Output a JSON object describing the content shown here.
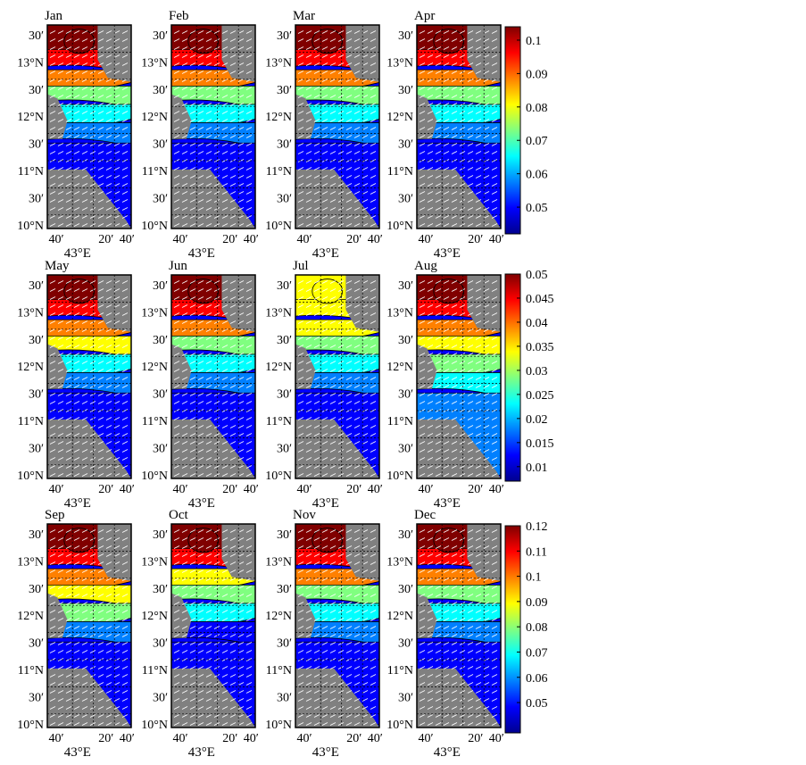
{
  "chart_data": {
    "type": "heatmap",
    "panels": [
      {
        "month": "Jan",
        "row": 0,
        "col": 0
      },
      {
        "month": "Feb",
        "row": 0,
        "col": 1
      },
      {
        "month": "Mar",
        "row": 0,
        "col": 2
      },
      {
        "month": "Apr",
        "row": 0,
        "col": 3
      },
      {
        "month": "May",
        "row": 1,
        "col": 0
      },
      {
        "month": "Jun",
        "row": 1,
        "col": 1
      },
      {
        "month": "Jul",
        "row": 1,
        "col": 2
      },
      {
        "month": "Aug",
        "row": 1,
        "col": 3
      },
      {
        "month": "Sep",
        "row": 2,
        "col": 0
      },
      {
        "month": "Oct",
        "row": 2,
        "col": 1
      },
      {
        "month": "Nov",
        "row": 2,
        "col": 2
      },
      {
        "month": "Dec",
        "row": 2,
        "col": 3
      }
    ],
    "ylabels": [
      "30′",
      "13°N",
      "30′",
      "12°N",
      "30′",
      "11°N",
      "30′",
      "10°N"
    ],
    "xlabels": [
      "40′",
      "20′",
      "40′"
    ],
    "xcenter_label": "43°E",
    "colorbars": [
      {
        "row": 0,
        "range": [
          0.042,
          0.104
        ],
        "ticks": [
          "0.1",
          "0.09",
          "0.08",
          "0.07",
          "0.06",
          "0.05"
        ],
        "tick_values": [
          0.1,
          0.09,
          0.08,
          0.07,
          0.06,
          0.05
        ]
      },
      {
        "row": 1,
        "range": [
          0.007,
          0.05
        ],
        "ticks": [
          "0.05",
          "0.045",
          "0.04",
          "0.035",
          "0.03",
          "0.025",
          "0.02",
          "0.015",
          "0.01"
        ],
        "tick_values": [
          0.05,
          0.045,
          0.04,
          0.035,
          0.03,
          0.025,
          0.02,
          0.015,
          0.01
        ]
      },
      {
        "row": 2,
        "range": [
          0.038,
          0.12
        ],
        "ticks": [
          "0.12",
          "0.11",
          "0.1",
          "0.09",
          "0.08",
          "0.07",
          "0.06",
          "0.05"
        ],
        "tick_values": [
          0.12,
          0.11,
          0.1,
          0.09,
          0.08,
          0.07,
          0.06,
          0.05
        ]
      }
    ],
    "colormap": [
      "#00008f",
      "#0000ff",
      "#0080ff",
      "#00ffff",
      "#80ff80",
      "#ffff00",
      "#ff8000",
      "#ff0000",
      "#800000"
    ],
    "land_color": "#808080",
    "vector_color": "#ffffff",
    "grid": true
  }
}
